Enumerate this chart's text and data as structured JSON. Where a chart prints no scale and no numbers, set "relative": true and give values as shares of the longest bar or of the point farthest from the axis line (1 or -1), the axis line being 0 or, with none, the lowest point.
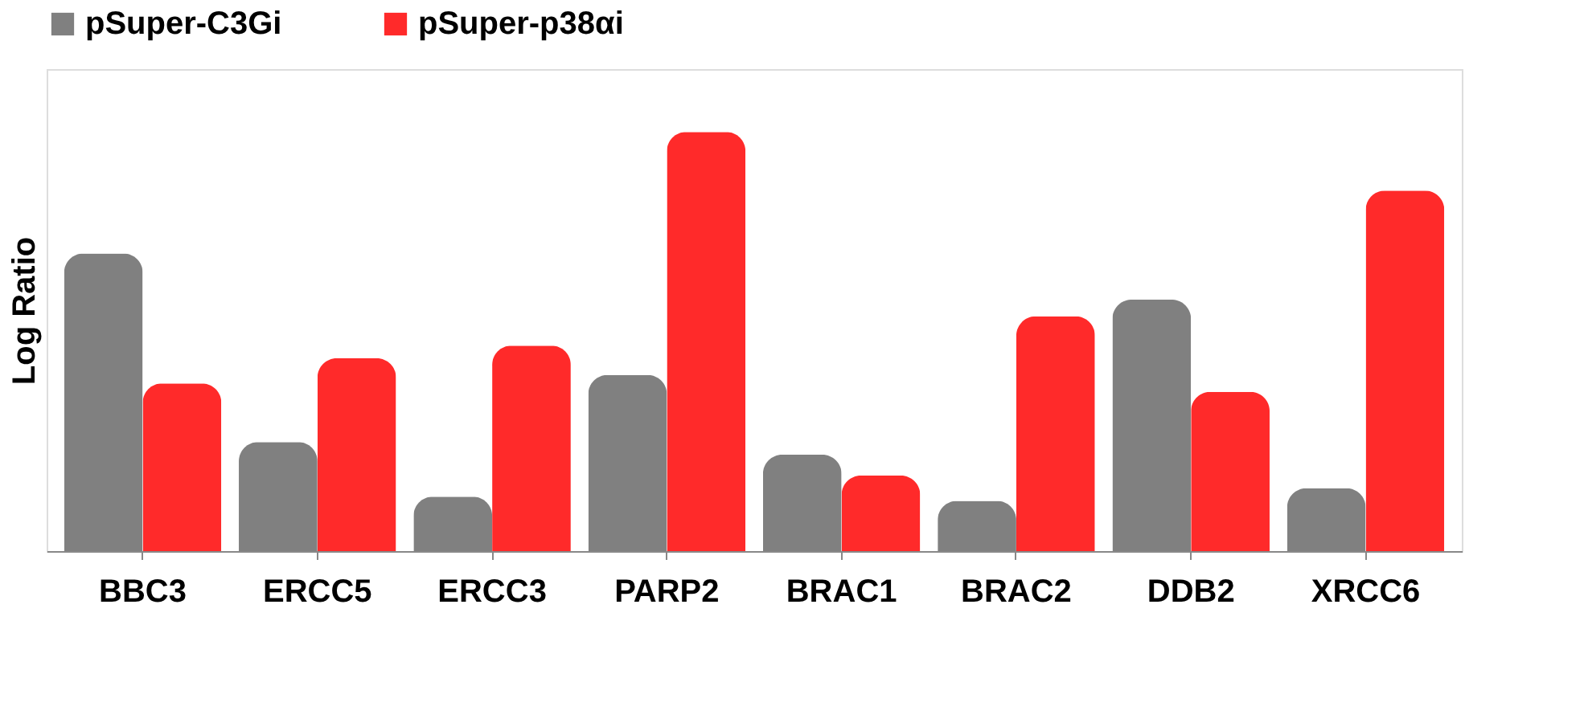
{
  "chart_data": {
    "type": "bar",
    "relative": true,
    "ylabel": "Log Ratio",
    "legend": "top",
    "grid": false,
    "categories": [
      "BBC3",
      "ERCC5",
      "ERCC3",
      "PARP2",
      "BRAC1",
      "BRAC2",
      "DDB2",
      "XRCC6"
    ],
    "series": [
      {
        "name": "pSuper-C3Gi",
        "color": "#808080",
        "values": [
          0.71,
          0.26,
          0.13,
          0.42,
          0.23,
          0.12,
          0.6,
          0.15
        ]
      },
      {
        "name": "pSuper-p38αi",
        "color": "#ff2a2a",
        "values": [
          0.4,
          0.46,
          0.49,
          1.0,
          0.18,
          0.56,
          0.38,
          0.86
        ]
      }
    ]
  }
}
